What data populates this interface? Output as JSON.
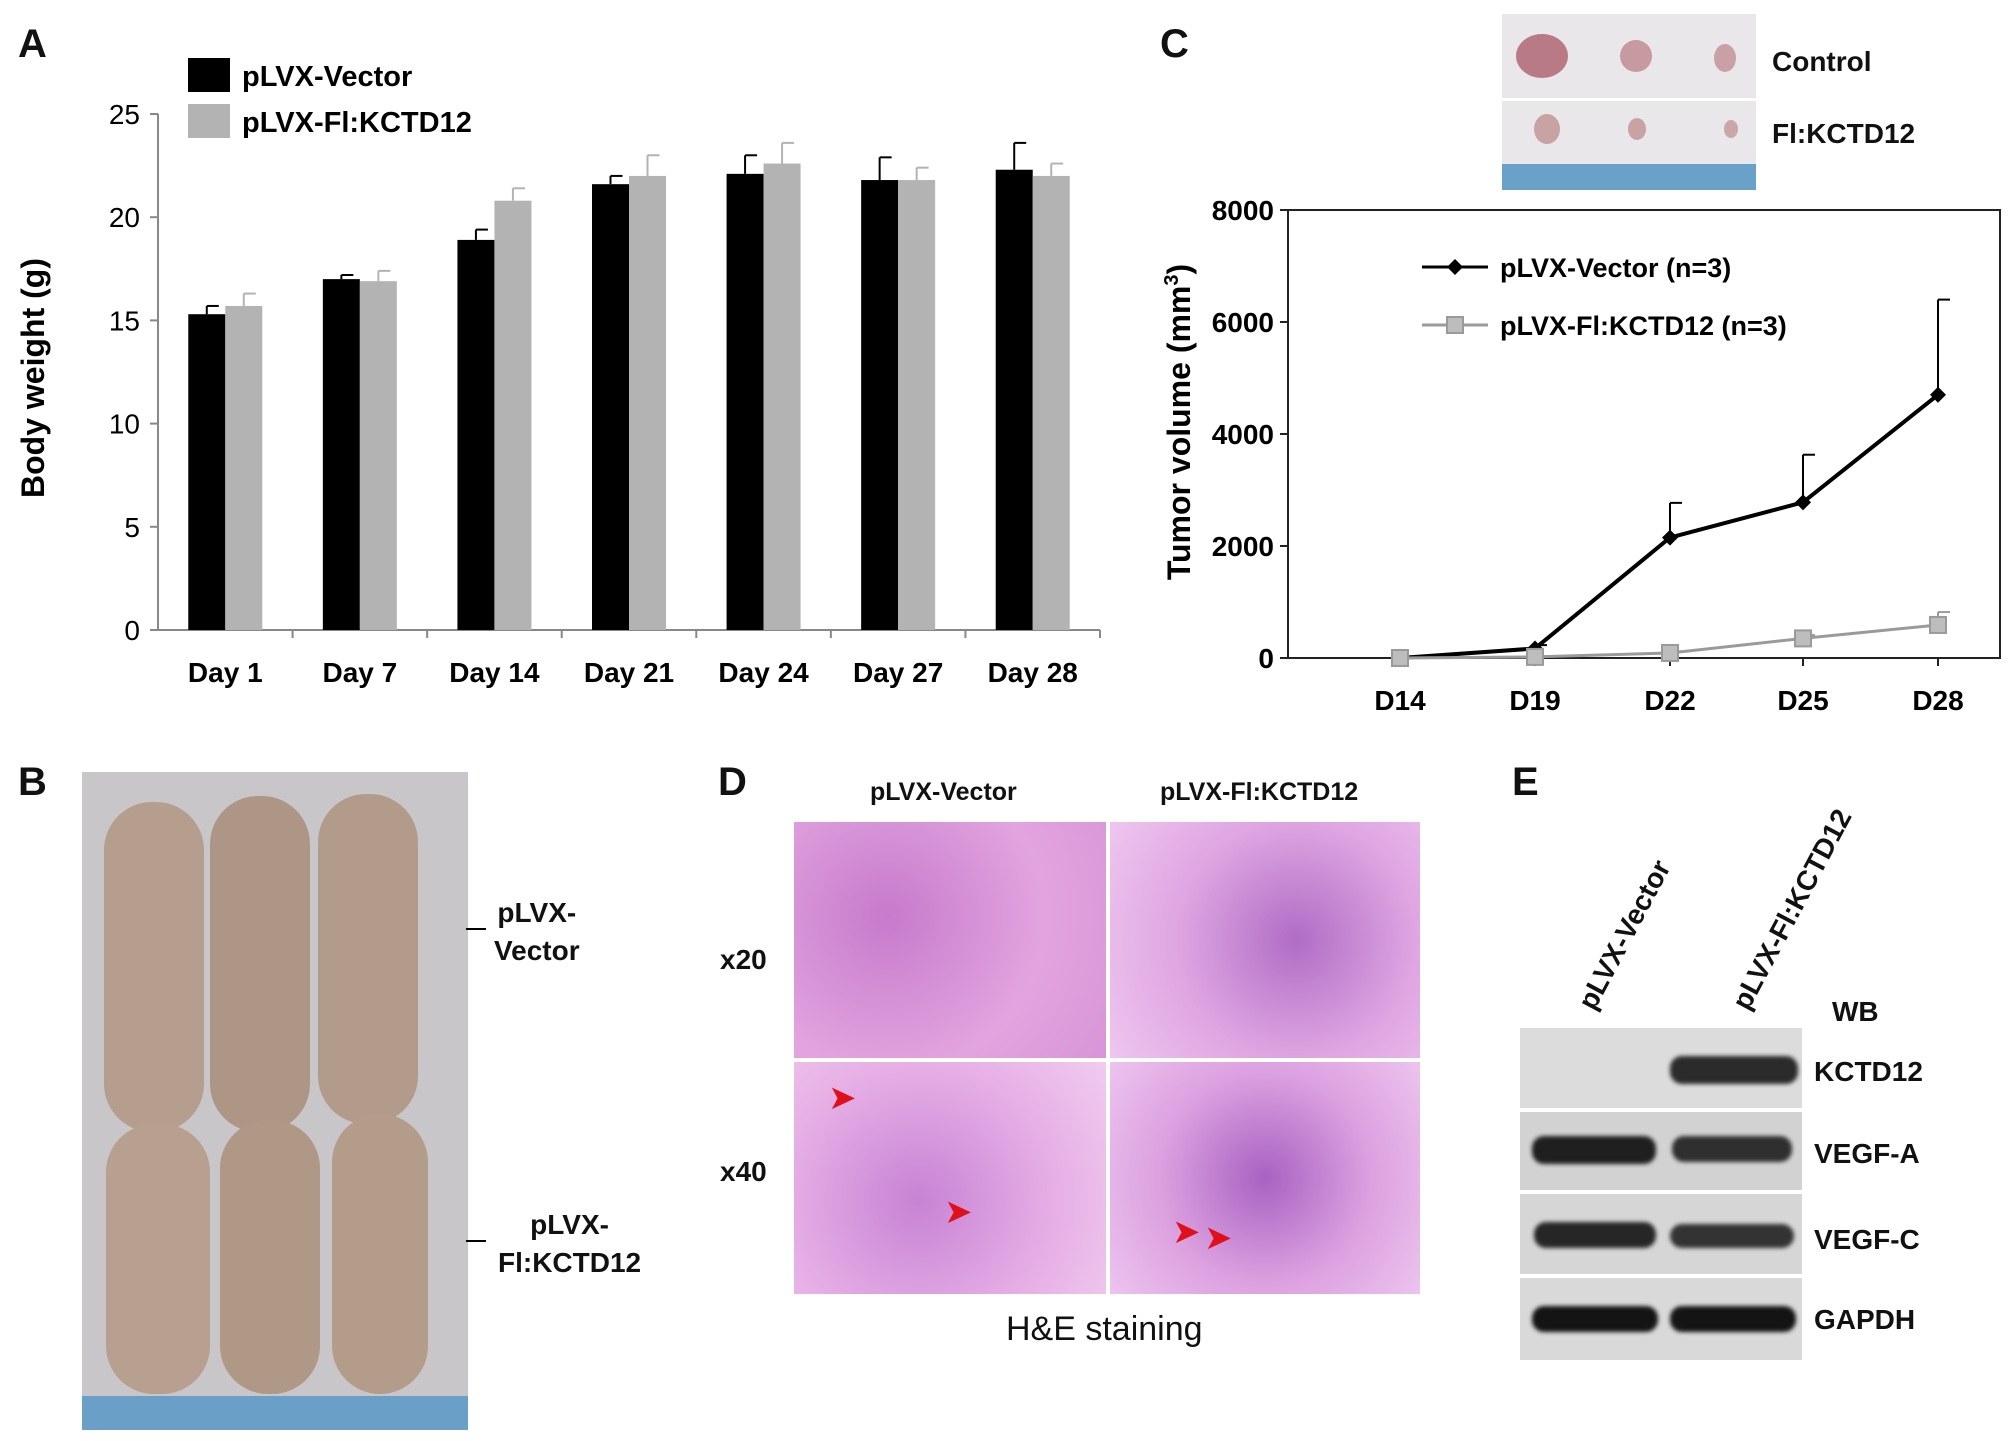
{
  "panels": {
    "a": "A",
    "b": "B",
    "c": "C",
    "d": "D",
    "e": "E"
  },
  "chart_data": [
    {
      "type": "bar",
      "panel": "A",
      "categories": [
        "Day 1",
        "Day 7",
        "Day 14",
        "Day 21",
        "Day 24",
        "Day 27",
        "Day 28"
      ],
      "series": [
        {
          "name": "pLVX-Vector",
          "color": "#000000",
          "values": [
            15.3,
            17.0,
            18.9,
            21.6,
            22.1,
            21.8,
            22.3
          ],
          "errors": [
            0.4,
            0.2,
            0.5,
            0.4,
            0.9,
            1.1,
            1.3
          ]
        },
        {
          "name": "pLVX-Fl:KCTD12",
          "color": "#b3b3b3",
          "values": [
            15.7,
            16.9,
            20.8,
            22.0,
            22.6,
            21.8,
            22.0
          ],
          "errors": [
            0.6,
            0.5,
            0.6,
            1.0,
            1.0,
            0.6,
            0.6
          ]
        }
      ],
      "xlabel": "",
      "ylabel": "Body weight (g)",
      "ylim": [
        0,
        25
      ],
      "yticks": [
        "0",
        "5",
        "10",
        "15",
        "20",
        "25"
      ],
      "legend_placement": "top-left",
      "grid": false
    },
    {
      "type": "line",
      "panel": "C",
      "categories": [
        "D14",
        "D19",
        "D22",
        "D25",
        "D28"
      ],
      "series": [
        {
          "name": "pLVX-Vector (n=3)",
          "color": "#000000",
          "marker": "diamond",
          "values": [
            0,
            170,
            2150,
            2780,
            4700
          ],
          "errors": [
            0,
            60,
            620,
            850,
            1700
          ]
        },
        {
          "name": "pLVX-Fl:KCTD12 (n=3)",
          "color": "#9a9a9a",
          "marker": "square",
          "values": [
            0,
            20,
            90,
            350,
            590
          ],
          "errors": [
            0,
            10,
            30,
            60,
            230
          ]
        }
      ],
      "ylabel_main": "Tumor volume (mm",
      "ylabel_sup": "3",
      "ylabel_end": ")",
      "ylim": [
        0,
        8000
      ],
      "yticks": [
        "0",
        "2000",
        "4000",
        "6000",
        "8000"
      ],
      "legend_placement": "top-left",
      "grid": false
    }
  ],
  "panel_c_photo": {
    "control": "Control",
    "treated": "Fl:KCTD12"
  },
  "panel_b": {
    "top_label": "pLVX-\nVector",
    "bottom_label": "pLVX-\nFl:KCTD12"
  },
  "panel_d": {
    "col1": "pLVX-Vector",
    "col2": "pLVX-Fl:KCTD12",
    "row1": "x20",
    "row2": "x40",
    "caption": "H&E staining"
  },
  "panel_e": {
    "lane1": "pLVX-Vector",
    "lane2": "pLVX-Fl:KCTD12",
    "method": "WB",
    "bands": [
      "KCTD12",
      "VEGF-A",
      "VEGF-C",
      "GAPDH"
    ]
  },
  "colors": {
    "he_bg": "#d98fd6",
    "mouse": "#b8a191",
    "blot_bg": "#d9d9d9"
  }
}
